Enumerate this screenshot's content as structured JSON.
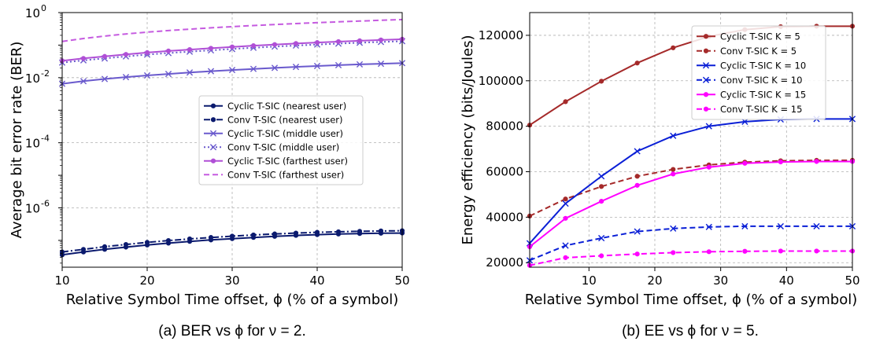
{
  "chart_data": [
    {
      "type": "line",
      "xlabel": "Relative Symbol Time offset, ϕ (% of a symbol)",
      "ylabel": "Average bit error rate (BER)",
      "caption": "(a) BER vs ϕ for ν = 2.",
      "xlim": [
        10,
        50
      ],
      "ylim": [
        1.5e-08,
        1
      ],
      "yscale": "log",
      "grid": true,
      "legend_position": "center-right",
      "x_ticks": [
        10,
        20,
        30,
        40,
        50
      ],
      "y_ticks": [
        {
          "value": 1,
          "base": "10",
          "exp": "0"
        },
        {
          "value": 0.01,
          "base": "10",
          "exp": "-2"
        },
        {
          "value": 0.0001,
          "base": "10",
          "exp": "-4"
        },
        {
          "value": 1e-06,
          "base": "10",
          "exp": "-6"
        }
      ],
      "x": [
        10,
        12.5,
        15,
        17.5,
        20,
        22.5,
        25,
        27.5,
        30,
        32.5,
        35,
        37.5,
        40,
        42.5,
        45,
        47.5,
        50
      ],
      "series": [
        {
          "name": "Cyclic T-SIC (nearest user)",
          "color": "#0b1a6e",
          "dash": "solid",
          "marker": "dot",
          "values": [
            3.6e-08,
            4.4e-08,
            5.3e-08,
            6.2e-08,
            7.2e-08,
            8.2e-08,
            9.3e-08,
            1.03e-07,
            1.13e-07,
            1.23e-07,
            1.33e-07,
            1.42e-07,
            1.5e-07,
            1.57e-07,
            1.62e-07,
            1.66e-07,
            1.68e-07
          ]
        },
        {
          "name": "Conv T-SIC (nearest user)",
          "color": "#0b1a6e",
          "dash": "dashdot",
          "marker": "dot",
          "values": [
            4.4e-08,
            5.3e-08,
            6.4e-08,
            7.5e-08,
            8.7e-08,
            9.9e-08,
            1.11e-07,
            1.23e-07,
            1.35e-07,
            1.47e-07,
            1.58e-07,
            1.68e-07,
            1.77e-07,
            1.84e-07,
            1.9e-07,
            1.95e-07,
            1.98e-07
          ]
        },
        {
          "name": "Cyclic T-SIC (middle user)",
          "color": "#6a5acd",
          "dash": "solid",
          "marker": "x",
          "values": [
            0.0065,
            0.0078,
            0.0091,
            0.0104,
            0.0117,
            0.013,
            0.0144,
            0.0158,
            0.0172,
            0.0186,
            0.02,
            0.0214,
            0.0228,
            0.0242,
            0.0256,
            0.0268,
            0.028
          ]
        },
        {
          "name": "Conv T-SIC (middle user)",
          "color": "#6a5acd",
          "dash": "dotted",
          "marker": "x",
          "values": [
            0.029,
            0.034,
            0.039,
            0.045,
            0.051,
            0.057,
            0.063,
            0.069,
            0.076,
            0.083,
            0.09,
            0.097,
            0.104,
            0.111,
            0.118,
            0.125,
            0.132
          ]
        },
        {
          "name": "Cyclic T-SIC (farthest user)",
          "color": "#b04fd6",
          "dash": "solid",
          "marker": "dot",
          "values": [
            0.033,
            0.039,
            0.045,
            0.052,
            0.059,
            0.066,
            0.073,
            0.08,
            0.088,
            0.096,
            0.104,
            0.112,
            0.12,
            0.128,
            0.136,
            0.144,
            0.152
          ]
        },
        {
          "name": "Conv T-SIC (farthest user)",
          "color": "#c55be0",
          "dash": "dashed",
          "marker": "none",
          "values": [
            0.13,
            0.16,
            0.19,
            0.22,
            0.25,
            0.28,
            0.31,
            0.34,
            0.37,
            0.4,
            0.43,
            0.46,
            0.49,
            0.52,
            0.55,
            0.58,
            0.61
          ]
        }
      ]
    },
    {
      "type": "line",
      "xlabel": "Relative Symbol Time offset, ϕ (% of a symbol)",
      "ylabel": "Energy efficiency (bits/Joules)",
      "caption": "(b) EE vs ϕ for ν = 5.",
      "xlim": [
        1,
        50
      ],
      "ylim": [
        18000,
        130000
      ],
      "yscale": "linear",
      "grid": true,
      "legend_position": "top-right",
      "x_ticks": [
        10,
        20,
        30,
        40,
        50
      ],
      "y_ticks": [
        20000,
        40000,
        60000,
        80000,
        100000,
        120000
      ],
      "x": [
        1,
        6.44,
        11.89,
        17.33,
        22.78,
        28.22,
        33.67,
        39.11,
        44.56,
        50
      ],
      "series": [
        {
          "name": "Cyclic T-SIC K = 5",
          "color": "#a52a2a",
          "dash": "solid",
          "marker": "dot",
          "values": [
            80500,
            90800,
            99800,
            107800,
            114500,
            119500,
            122500,
            123800,
            124000,
            124000
          ]
        },
        {
          "name": "Conv T-SIC K = 5",
          "color": "#a52a2a",
          "dash": "dashed",
          "marker": "dot",
          "values": [
            40500,
            48000,
            53500,
            58000,
            61000,
            63000,
            64200,
            64800,
            65000,
            65000
          ]
        },
        {
          "name": "Cyclic T-SIC K = 10",
          "color": "#0a1fd6",
          "dash": "solid",
          "marker": "x",
          "values": [
            28500,
            46000,
            58000,
            69000,
            75800,
            80000,
            82000,
            83000,
            83200,
            83200
          ]
        },
        {
          "name": "Conv T-SIC K = 10",
          "color": "#0a1fd6",
          "dash": "dashed",
          "marker": "x",
          "values": [
            21000,
            27500,
            30800,
            33700,
            35000,
            35700,
            36000,
            36000,
            36000,
            36000
          ]
        },
        {
          "name": "Cyclic T-SIC K = 15",
          "color": "#ff00ff",
          "dash": "solid",
          "marker": "dot",
          "values": [
            27000,
            39500,
            47000,
            54000,
            59000,
            62000,
            63700,
            64300,
            64500,
            64500
          ]
        },
        {
          "name": "Conv T-SIC K = 15",
          "color": "#ff00ff",
          "dash": "dashed",
          "marker": "dot",
          "values": [
            18800,
            22200,
            23000,
            23800,
            24400,
            24800,
            25000,
            25100,
            25100,
            25100
          ]
        }
      ]
    }
  ]
}
